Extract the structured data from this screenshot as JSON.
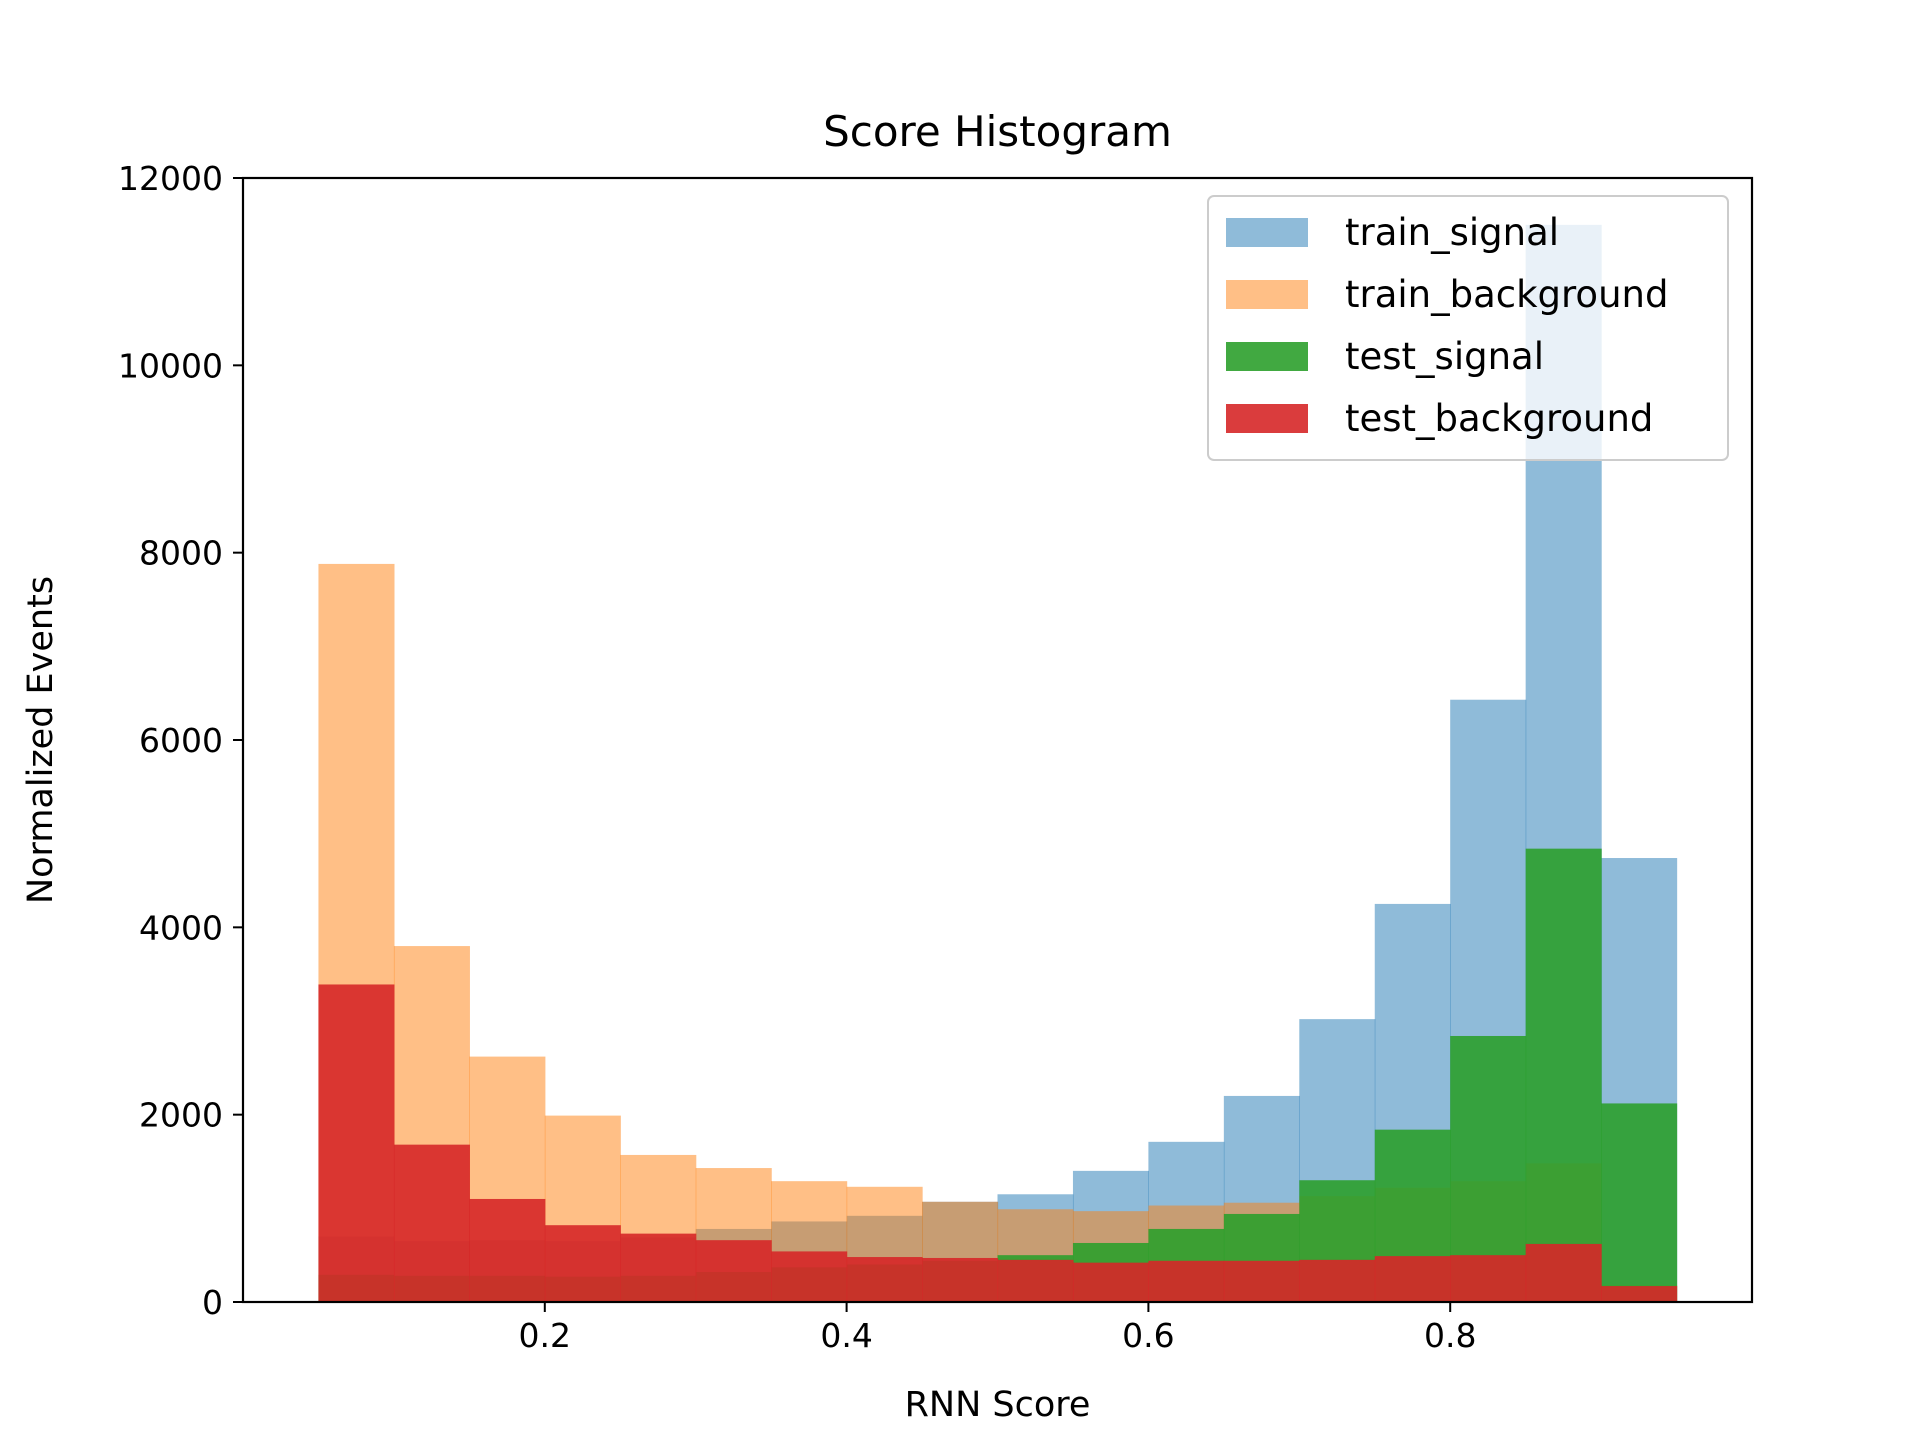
{
  "chart_data": {
    "type": "bar",
    "title": "Score Histogram",
    "xlabel": "RNN Score",
    "ylabel": "Normalized Events",
    "xlim": [
      0.0,
      1.0
    ],
    "ylim": [
      0,
      12000
    ],
    "xticks": [
      0.2,
      0.4,
      0.6,
      0.8
    ],
    "yticks": [
      0,
      2000,
      4000,
      6000,
      8000,
      10000,
      12000
    ],
    "grid": false,
    "legend_position": "top-right",
    "bin_edges": [
      0.05,
      0.1,
      0.15,
      0.2,
      0.25,
      0.3,
      0.35,
      0.4,
      0.45,
      0.5,
      0.55,
      0.6,
      0.65,
      0.7,
      0.75,
      0.8,
      0.85,
      0.9,
      0.95
    ],
    "series": [
      {
        "name": "train_signal",
        "color": "#1f77b4",
        "opacity": 0.5,
        "values": [
          700,
          650,
          660,
          650,
          690,
          780,
          860,
          920,
          1070,
          1150,
          1400,
          1710,
          2200,
          3020,
          4250,
          6430,
          11500,
          4740
        ]
      },
      {
        "name": "train_background",
        "color": "#ff7f0e",
        "opacity": 0.5,
        "values": [
          7880,
          3800,
          2620,
          1990,
          1570,
          1430,
          1290,
          1230,
          1070,
          990,
          970,
          1030,
          1060,
          1130,
          1220,
          1290,
          1480,
          180
        ]
      },
      {
        "name": "test_signal",
        "color": "#2ca02c",
        "opacity": 0.9,
        "values": [
          290,
          280,
          280,
          270,
          280,
          320,
          370,
          400,
          440,
          500,
          630,
          780,
          940,
          1300,
          1840,
          2840,
          4840,
          2120
        ]
      },
      {
        "name": "test_background",
        "color": "#d62728",
        "opacity": 0.9,
        "values": [
          3390,
          1680,
          1100,
          820,
          730,
          660,
          540,
          480,
          470,
          450,
          420,
          440,
          440,
          450,
          490,
          500,
          620,
          170
        ]
      }
    ]
  }
}
